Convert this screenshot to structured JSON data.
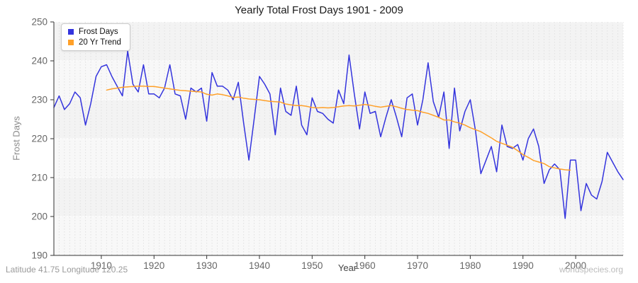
{
  "title": "Yearly Total Frost Days 1901 - 2009",
  "footer": {
    "left": "Latitude 41.75 Longitude 120.25",
    "right": "worldspecies.org"
  },
  "colors": {
    "frost_days_line": "#3434dd",
    "trend_line": "#ffa028",
    "plot_band_dark": "#f3f3f3",
    "plot_band_light": "#f8f8f8",
    "grid_vertical": "#e0e0e0",
    "grid_horizontal": "#ffffff",
    "axis": "#333333",
    "tick_label": "#666666"
  },
  "chart_data": {
    "type": "line",
    "title": "Yearly Total Frost Days 1901 - 2009",
    "xlabel": "Year",
    "ylabel": "Frost Days",
    "xlim": [
      1901,
      2009
    ],
    "ylim": [
      190,
      250
    ],
    "x_ticks": [
      1910,
      1920,
      1930,
      1940,
      1950,
      1960,
      1970,
      1980,
      1990,
      2000
    ],
    "y_ticks": [
      190,
      200,
      210,
      220,
      230,
      240,
      250
    ],
    "grid": true,
    "legend_position": "top-left",
    "series": [
      {
        "name": "Frost Days",
        "color": "#3434dd",
        "x_start": 1901,
        "values": [
          228,
          231,
          227.5,
          229,
          232,
          230.5,
          223.5,
          229,
          236,
          238.5,
          239,
          236,
          233.5,
          231,
          242.5,
          234,
          232,
          239,
          231.5,
          231.5,
          230.5,
          233,
          239,
          231.5,
          231,
          225,
          233,
          232,
          233,
          224.5,
          237,
          233.5,
          233.5,
          232.5,
          230,
          234.5,
          224,
          214.5,
          225,
          236,
          234,
          231.5,
          221,
          233,
          227,
          226,
          233.5,
          223.5,
          221,
          230.5,
          227,
          226.5,
          225,
          224,
          232.5,
          229,
          241.5,
          231.5,
          222.5,
          232,
          226.5,
          227,
          220.5,
          225.5,
          230,
          225.5,
          220.5,
          230.5,
          231.5,
          223.5,
          230,
          239.5,
          229.5,
          225.5,
          232,
          217.5,
          233,
          222,
          227,
          230,
          222,
          211,
          214.5,
          218,
          211.5,
          223.5,
          218,
          217.5,
          218.5,
          214.5,
          220,
          222.5,
          218,
          208.5,
          212,
          213.5,
          212,
          199.5,
          214.5,
          214.5,
          201.5,
          208.5,
          205.5,
          204.5,
          209,
          216.5,
          214,
          211.5,
          209.5
        ]
      },
      {
        "name": "20 Yr Trend",
        "color": "#ffa028",
        "x_start": 1911,
        "values": [
          232.5,
          232.8,
          233.0,
          233.2,
          233.3,
          233.4,
          233.5,
          233.5,
          233.4,
          233.4,
          233.2,
          233.0,
          232.8,
          232.6,
          232.4,
          232.3,
          232.2,
          232.1,
          232.0,
          231.4,
          231.2,
          231.5,
          231.3,
          231.0,
          230.6,
          230.7,
          230.4,
          230.2,
          230.1,
          230.0,
          229.8,
          229.6,
          229.5,
          229.4,
          228.9,
          228.7,
          228.5,
          228.5,
          228.3,
          228.0,
          227.9,
          228.0,
          227.9,
          228.0,
          228.2,
          228.4,
          228.5,
          228.4,
          228.6,
          228.8,
          228.6,
          228.3,
          228.1,
          228.3,
          228.5,
          228.2,
          227.8,
          227.5,
          227.3,
          227.2,
          226.8,
          226.5,
          226.0,
          225.5,
          224.8,
          224.8,
          224.3,
          224.0,
          223.5,
          222.8,
          222.3,
          221.8,
          221.0,
          220.2,
          219.3,
          218.8,
          218.3,
          217.8,
          216.9,
          215.9,
          215.2,
          214.4,
          214.0,
          213.6,
          212.8,
          212.5,
          212.2,
          212.0,
          211.9
        ]
      }
    ]
  }
}
